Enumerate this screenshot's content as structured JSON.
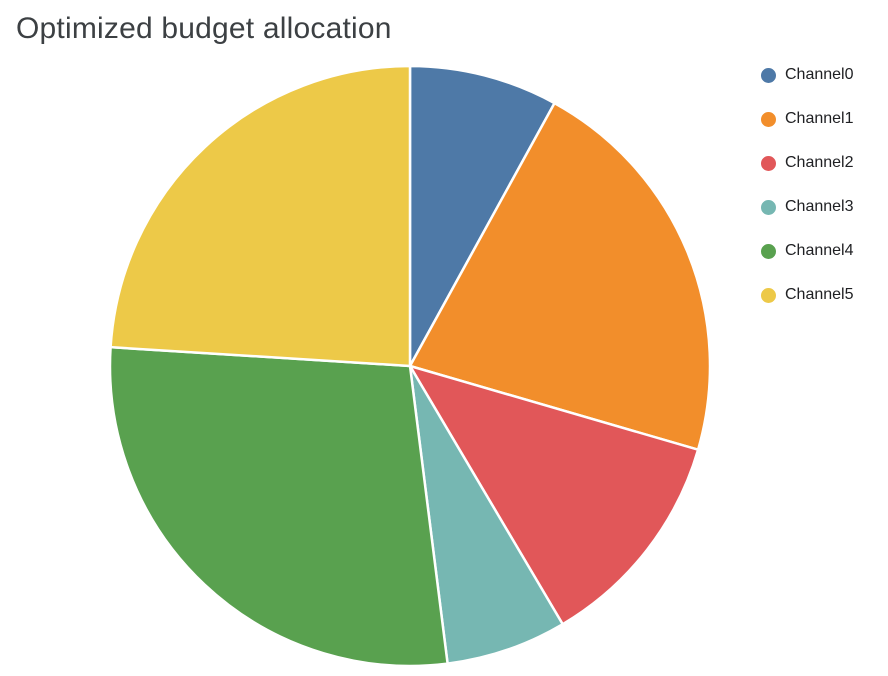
{
  "page": {
    "background": "#ffffff"
  },
  "chart_data": {
    "type": "pie",
    "title": "Optimized budget allocation",
    "categories": [
      "Channel0",
      "Channel1",
      "Channel2",
      "Channel3",
      "Channel4",
      "Channel5"
    ],
    "values": [
      8,
      21.5,
      12,
      6.5,
      28,
      24
    ],
    "unit": "percent",
    "colors": [
      "#4e79a7",
      "#f28e2b",
      "#e15759",
      "#76b7b2",
      "#59a14f",
      "#edc948"
    ],
    "title_color": "#3c4043",
    "legend_position": "right",
    "start_angle_deg": 0,
    "direction": "clockwise",
    "slice_gap_color": "#ffffff",
    "xlabel": "",
    "ylabel": ""
  }
}
